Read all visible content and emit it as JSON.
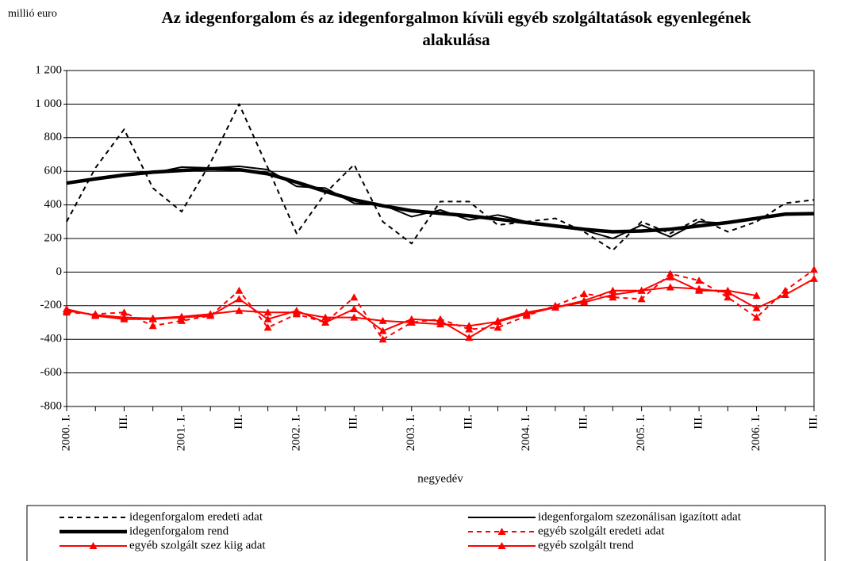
{
  "chart_data": {
    "type": "line",
    "title": "Az idegenforgalom és az idegenforgalmon kívüli egyéb szolgáltatások egyenlegének alakulása",
    "unit_label": "millió euro",
    "x_label": "negyedév",
    "categories": [
      "2000. I.",
      null,
      "III.",
      null,
      "2001. I.",
      null,
      "III.",
      null,
      "2002. I.",
      null,
      "III.",
      null,
      "2003. I.",
      null,
      "III.",
      null,
      "2004. I.",
      null,
      "III.",
      null,
      "2005. I.",
      null,
      "III.",
      null,
      "2006. I.",
      null,
      "III."
    ],
    "ylim": [
      -800,
      1200
    ],
    "yticks": [
      -800,
      -600,
      -400,
      -200,
      0,
      200,
      400,
      600,
      800,
      {
        "value": 1000,
        "label": "1 000"
      },
      {
        "value": 1200,
        "label": "1 200"
      }
    ],
    "grid": true,
    "series": [
      {
        "name": "idegenforgalom eredeti adat",
        "color": "#000000",
        "dash": true,
        "width": 2,
        "marker": false,
        "values": [
          300,
          620,
          850,
          500,
          360,
          650,
          1000,
          620,
          230,
          470,
          640,
          300,
          170,
          420,
          420,
          280,
          300,
          320,
          240,
          130,
          300,
          230,
          320,
          240,
          300,
          410,
          430
        ]
      },
      {
        "name": "idegenforgalom szezonálisan igazított adat",
        "color": "#000000",
        "dash": false,
        "width": 2,
        "marker": false,
        "values": [
          530,
          550,
          580,
          590,
          625,
          620,
          630,
          610,
          510,
          500,
          410,
          400,
          330,
          370,
          310,
          340,
          300,
          270,
          250,
          200,
          280,
          210,
          300,
          290,
          320,
          null,
          null
        ]
      },
      {
        "name": "idegenforgalom rend",
        "color": "#000000",
        "dash": false,
        "width": 4.5,
        "marker": false,
        "values": [
          530,
          555,
          578,
          595,
          605,
          615,
          610,
          585,
          535,
          480,
          430,
          395,
          365,
          350,
          335,
          315,
          295,
          275,
          255,
          240,
          245,
          255,
          275,
          295,
          320,
          345,
          348
        ]
      },
      {
        "name": "egyéb szolgált eredeti adat",
        "color": "#ff0000",
        "dash": true,
        "width": 2,
        "marker": true,
        "values": [
          -240,
          -250,
          -240,
          -320,
          -290,
          -260,
          -110,
          -330,
          -250,
          -300,
          -150,
          -400,
          -300,
          -280,
          -340,
          -330,
          -260,
          -200,
          -130,
          -150,
          -160,
          -10,
          -50,
          -150,
          -270,
          -110,
          15
        ]
      },
      {
        "name": "egyéb szolgált szez kiig adat",
        "color": "#ff0000",
        "dash": false,
        "width": 2,
        "marker": true,
        "values": [
          -220,
          -260,
          -280,
          -280,
          -270,
          -260,
          -160,
          -280,
          -230,
          -300,
          -220,
          -350,
          -280,
          -290,
          -390,
          -290,
          -240,
          -210,
          -170,
          -110,
          -110,
          -30,
          -110,
          -110,
          -140,
          null,
          null
        ]
      },
      {
        "name": "egyéb szolgált trend",
        "color": "#ff0000",
        "dash": false,
        "width": 2,
        "marker": true,
        "values": [
          -230,
          -255,
          -270,
          -275,
          -265,
          -250,
          -230,
          -240,
          -240,
          -270,
          -270,
          -290,
          -300,
          -310,
          -320,
          -295,
          -250,
          -210,
          -180,
          -135,
          -110,
          -90,
          -100,
          -120,
          -215,
          -135,
          -40
        ]
      }
    ]
  }
}
